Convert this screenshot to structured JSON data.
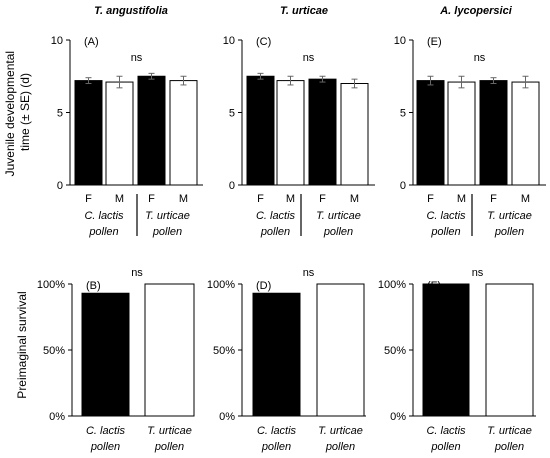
{
  "figure": {
    "ylabel_top": [
      "Juvenile developmental",
      "time (± SE) (d)"
    ],
    "ylabel_bottom": "Preimaginal survival"
  },
  "chart_data": [
    {
      "id": "A",
      "type": "bar",
      "panel_label": "(A)",
      "title": "T. angustifolia",
      "significance": "ns",
      "categories": [
        "F",
        "M",
        "F",
        "M"
      ],
      "groups": [
        "C. lactis pollen",
        "T. urticae pollen"
      ],
      "fills": [
        "#000000",
        "#ffffff",
        "#000000",
        "#ffffff"
      ],
      "values": [
        7.2,
        7.1,
        7.5,
        7.2
      ],
      "errors": [
        0.2,
        0.4,
        0.2,
        0.3
      ],
      "ylim": [
        0,
        10
      ],
      "yticks": [
        0,
        5,
        10
      ],
      "ytick_labels": [
        "0",
        "5",
        "10"
      ],
      "grid": false
    },
    {
      "id": "C",
      "type": "bar",
      "panel_label": "(C)",
      "title": "T. urticae",
      "significance": "ns",
      "categories": [
        "F",
        "M",
        "F",
        "M"
      ],
      "groups": [
        "C. lactis pollen",
        "T. urticae pollen"
      ],
      "fills": [
        "#000000",
        "#ffffff",
        "#000000",
        "#ffffff"
      ],
      "values": [
        7.5,
        7.2,
        7.3,
        7.0
      ],
      "errors": [
        0.2,
        0.3,
        0.2,
        0.3
      ],
      "ylim": [
        0,
        10
      ],
      "yticks": [
        0,
        5,
        10
      ],
      "ytick_labels": [
        "0",
        "5",
        "10"
      ],
      "grid": false
    },
    {
      "id": "E",
      "type": "bar",
      "panel_label": "(E)",
      "title": "A. lycopersici",
      "significance": "ns",
      "categories": [
        "F",
        "M",
        "F",
        "M"
      ],
      "groups": [
        "C. lactis pollen",
        "T. urticae pollen"
      ],
      "fills": [
        "#000000",
        "#ffffff",
        "#000000",
        "#ffffff"
      ],
      "values": [
        7.2,
        7.1,
        7.2,
        7.1
      ],
      "errors": [
        0.3,
        0.4,
        0.2,
        0.4
      ],
      "ylim": [
        0,
        10
      ],
      "yticks": [
        0,
        5,
        10
      ],
      "ytick_labels": [
        "0",
        "5",
        "10"
      ],
      "grid": false
    },
    {
      "id": "B",
      "type": "bar",
      "panel_label": "(B)",
      "title": "",
      "significance": "ns",
      "categories": [
        "C. lactis pollen",
        "T. urticae pollen"
      ],
      "fills": [
        "#000000",
        "#ffffff"
      ],
      "values": [
        93,
        100
      ],
      "ylim": [
        0,
        100
      ],
      "yticks": [
        0,
        50,
        100
      ],
      "ytick_labels": [
        "0%",
        "50%",
        "100%"
      ],
      "grid": false
    },
    {
      "id": "D",
      "type": "bar",
      "panel_label": "(D)",
      "title": "",
      "significance": "ns",
      "categories": [
        "C. lactis pollen",
        "T. urticae pollen"
      ],
      "fills": [
        "#000000",
        "#ffffff"
      ],
      "values": [
        93,
        100
      ],
      "ylim": [
        0,
        100
      ],
      "yticks": [
        0,
        50,
        100
      ],
      "ytick_labels": [
        "0%",
        "50%",
        "100%"
      ],
      "grid": false
    },
    {
      "id": "F",
      "type": "bar",
      "panel_label": "(F)",
      "title": "",
      "significance": "ns",
      "categories": [
        "C. lactis pollen",
        "T. urticae pollen"
      ],
      "fills": [
        "#000000",
        "#ffffff"
      ],
      "values": [
        100,
        100
      ],
      "ylim": [
        0,
        100
      ],
      "yticks": [
        0,
        50,
        100
      ],
      "ytick_labels": [
        "0%",
        "50%",
        "100%"
      ],
      "grid": false
    }
  ]
}
